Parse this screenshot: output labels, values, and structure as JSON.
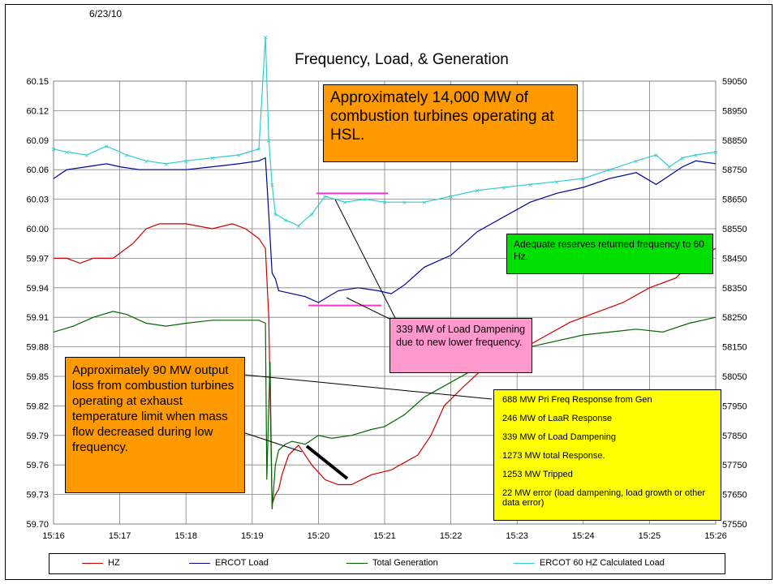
{
  "header": {
    "date": "6/23/10",
    "title": "Frequency, Load, & Generation"
  },
  "callouts": {
    "hsl": "Approximately 14,000 MW of combustion turbines operating at HSL.",
    "reserves": "Adequate reserves returned frequency to 60 Hz.",
    "dampening": "339 MW of Load Dampening due to new lower frequency.",
    "ct_loss": "Approximately 90 MW output loss from combustion turbines operating at exhaust temperature limit when mass flow decreased during low frequency.",
    "response_lines": [
      "688 MW Pri Freq Response from Gen",
      "246 MW of LaaR Response",
      "339 MW of Load Dampening",
      "1273 MW total Response.",
      "1253 MW Tripped",
      "22 MW error (load dampening, load growth or other data error)"
    ]
  },
  "colors": {
    "hz": "#cc0000",
    "load": "#000099",
    "gen": "#006600",
    "calc": "#33cccc",
    "marker": "#ff33cc",
    "hsl_box": "#ff9900",
    "reserves_box": "#00e000",
    "damp_box": "#ff99cc",
    "resp_box": "#ffff00"
  },
  "chart_data": {
    "type": "line",
    "title": "Frequency, Load, & Generation",
    "x_ticks": [
      "15:16",
      "15:17",
      "15:18",
      "15:19",
      "15:20",
      "15:21",
      "15:22",
      "15:23",
      "15:24",
      "15:25",
      "15:26"
    ],
    "y_left": {
      "ylim": [
        59.7,
        60.15
      ],
      "ticks": [
        "59.70",
        "59.73",
        "59.76",
        "59.79",
        "59.82",
        "59.85",
        "59.88",
        "59.91",
        "59.94",
        "59.97",
        "60.00",
        "60.03",
        "60.06",
        "60.09",
        "60.12",
        "60.15"
      ]
    },
    "y_right": {
      "ylim": [
        57550,
        59050
      ],
      "ticks": [
        "57550",
        "57650",
        "57750",
        "57850",
        "57950",
        "58050",
        "58150",
        "58250",
        "58350",
        "58450",
        "58550",
        "58650",
        "58750",
        "58850",
        "58950",
        "59050"
      ]
    },
    "grid": true,
    "legend_position": "bottom",
    "series": [
      {
        "name": "HZ",
        "axis": "left",
        "x": [
          0,
          0.2,
          0.4,
          0.6,
          0.9,
          1.2,
          1.4,
          1.6,
          2.0,
          2.4,
          2.7,
          2.9,
          3.1,
          3.2,
          3.25,
          3.3,
          3.35,
          3.4,
          3.45,
          3.55,
          3.7,
          3.9,
          4.1,
          4.3,
          4.5,
          4.8,
          5.1,
          5.5,
          5.7,
          5.9,
          6.2,
          6.6,
          7.0,
          7.4,
          7.8,
          8.2,
          8.6,
          9.0,
          9.4,
          9.7,
          10.0
        ],
        "values": [
          59.97,
          59.97,
          59.965,
          59.97,
          59.97,
          59.985,
          60.0,
          60.005,
          60.005,
          60.0,
          60.005,
          60.0,
          59.99,
          59.98,
          59.91,
          59.72,
          59.73,
          59.735,
          59.75,
          59.77,
          59.78,
          59.76,
          59.745,
          59.74,
          59.74,
          59.75,
          59.755,
          59.77,
          59.79,
          59.82,
          59.84,
          59.865,
          59.875,
          59.89,
          59.905,
          59.915,
          59.925,
          59.94,
          59.95,
          59.97,
          59.98
        ]
      },
      {
        "name": "ERCOT Load",
        "axis": "right",
        "x": [
          0,
          0.2,
          0.5,
          0.8,
          1.0,
          1.3,
          1.6,
          2.0,
          2.4,
          2.8,
          3.1,
          3.2,
          3.25,
          3.3,
          3.35,
          3.4,
          3.6,
          3.8,
          4.0,
          4.3,
          4.6,
          4.9,
          5.1,
          5.3,
          5.6,
          6.0,
          6.4,
          6.8,
          7.2,
          7.6,
          8.0,
          8.4,
          8.8,
          9.1,
          9.3,
          9.5,
          9.7,
          10.0
        ],
        "values": [
          58720,
          58750,
          58760,
          58770,
          58760,
          58750,
          58750,
          58750,
          58760,
          58770,
          58780,
          58790,
          58600,
          58400,
          58380,
          58340,
          58330,
          58320,
          58300,
          58340,
          58350,
          58340,
          58330,
          58360,
          58420,
          58460,
          58540,
          58590,
          58640,
          58670,
          58690,
          58720,
          58740,
          58700,
          58730,
          58760,
          58780,
          58770
        ]
      },
      {
        "name": "Total Generation",
        "axis": "right",
        "x": [
          0,
          0.3,
          0.6,
          0.9,
          1.1,
          1.4,
          1.7,
          2.0,
          2.4,
          2.8,
          3.1,
          3.2,
          3.22,
          3.25,
          3.27,
          3.3,
          3.35,
          3.4,
          3.5,
          3.6,
          3.8,
          4.0,
          4.2,
          4.5,
          4.8,
          5.0,
          5.3,
          5.6,
          6.0,
          6.4,
          6.8,
          7.2,
          7.6,
          8.0,
          8.4,
          8.8,
          9.2,
          9.6,
          10.0
        ],
        "values": [
          58200,
          58220,
          58250,
          58270,
          58260,
          58230,
          58220,
          58230,
          58240,
          58240,
          58240,
          58230,
          57700,
          57950,
          58100,
          57600,
          57750,
          57800,
          57820,
          57830,
          57820,
          57850,
          57840,
          57850,
          57870,
          57880,
          57920,
          57980,
          58030,
          58080,
          58120,
          58150,
          58170,
          58190,
          58200,
          58210,
          58200,
          58230,
          58250
        ]
      },
      {
        "name": "ERCOT 60 HZ Calculated Load",
        "axis": "right",
        "x": [
          0,
          0.2,
          0.5,
          0.8,
          1.1,
          1.4,
          1.7,
          2.0,
          2.4,
          2.8,
          3.1,
          3.2,
          3.25,
          3.3,
          3.35,
          3.5,
          3.7,
          3.9,
          4.1,
          4.4,
          4.7,
          5.0,
          5.3,
          5.6,
          6.0,
          6.4,
          6.8,
          7.2,
          7.6,
          8.0,
          8.4,
          8.8,
          9.1,
          9.3,
          9.5,
          9.7,
          10.0
        ],
        "values": [
          58820,
          58810,
          58800,
          58830,
          58800,
          58780,
          58770,
          58780,
          58790,
          58800,
          58820,
          59200,
          58850,
          58700,
          58600,
          58580,
          58560,
          58600,
          58660,
          58640,
          58650,
          58640,
          58640,
          58640,
          58660,
          58680,
          58690,
          58700,
          58710,
          58720,
          58750,
          58780,
          58800,
          58760,
          58790,
          58800,
          58810
        ]
      }
    ],
    "annotations": {
      "hsl_marker_level": 58670,
      "dampening_marker_level": 58290
    }
  },
  "legend": {
    "hz": "HZ",
    "load": "ERCOT Load",
    "gen": "Total Generation",
    "calc": "ERCOT 60 HZ Calculated Load"
  }
}
